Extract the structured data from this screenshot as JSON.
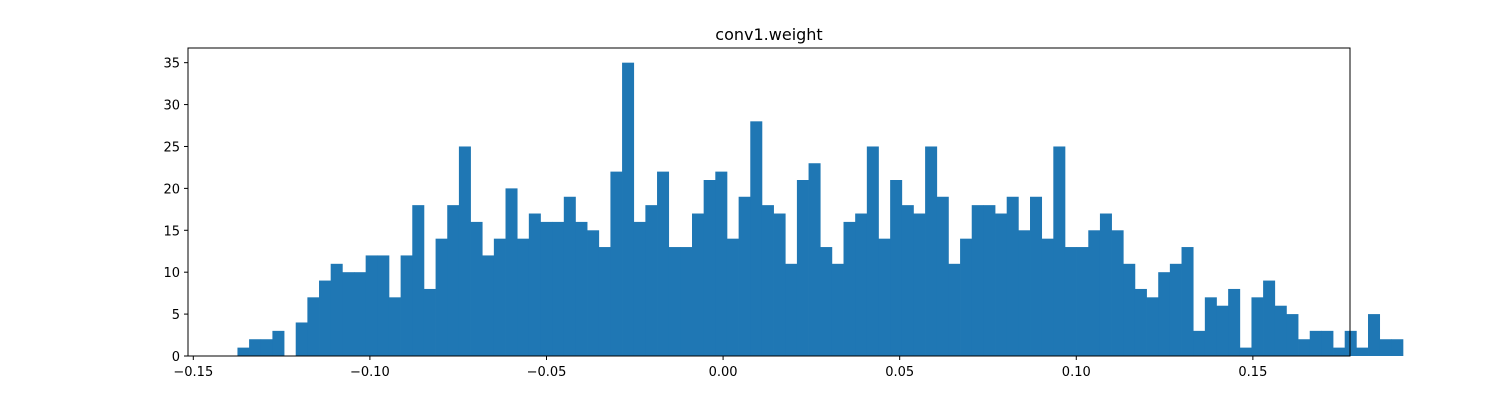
{
  "chart_data": {
    "type": "bar",
    "title": "conv1.weight",
    "xlabel": "",
    "ylabel": "",
    "xlim": [
      -0.1515,
      0.1775
    ],
    "ylim": [
      0,
      36.75
    ],
    "grid": false,
    "bar_color": "#1f77b4",
    "bin_start": -0.1375,
    "bin_width": 0.0033,
    "counts": [
      1,
      2,
      2,
      3,
      0,
      4,
      7,
      9,
      11,
      10,
      10,
      12,
      12,
      7,
      12,
      18,
      8,
      14,
      18,
      25,
      16,
      12,
      14,
      20,
      14,
      17,
      16,
      16,
      19,
      16,
      15,
      13,
      22,
      35,
      16,
      18,
      22,
      13,
      13,
      17,
      21,
      22,
      14,
      19,
      28,
      18,
      17,
      11,
      21,
      23,
      13,
      11,
      16,
      17,
      25,
      14,
      21,
      18,
      17,
      25,
      19,
      11,
      14,
      18,
      18,
      17,
      19,
      15,
      19,
      14,
      25,
      13,
      13,
      15,
      17,
      15,
      11,
      8,
      7,
      10,
      11,
      13,
      3,
      7,
      6,
      8,
      1,
      7,
      9,
      6,
      5,
      2,
      3,
      3,
      1,
      3,
      1,
      5,
      2,
      2
    ],
    "x_ticks": [
      {
        "value": -0.15,
        "label": "−0.15"
      },
      {
        "value": -0.1,
        "label": "−0.10"
      },
      {
        "value": -0.05,
        "label": "−0.05"
      },
      {
        "value": 0.0,
        "label": "0.00"
      },
      {
        "value": 0.05,
        "label": "0.05"
      },
      {
        "value": 0.1,
        "label": "0.10"
      },
      {
        "value": 0.15,
        "label": "0.15"
      }
    ],
    "y_ticks": [
      {
        "value": 0,
        "label": "0"
      },
      {
        "value": 5,
        "label": "5"
      },
      {
        "value": 10,
        "label": "10"
      },
      {
        "value": 15,
        "label": "15"
      },
      {
        "value": 20,
        "label": "20"
      },
      {
        "value": 25,
        "label": "25"
      },
      {
        "value": 30,
        "label": "30"
      },
      {
        "value": 35,
        "label": "35"
      }
    ]
  }
}
